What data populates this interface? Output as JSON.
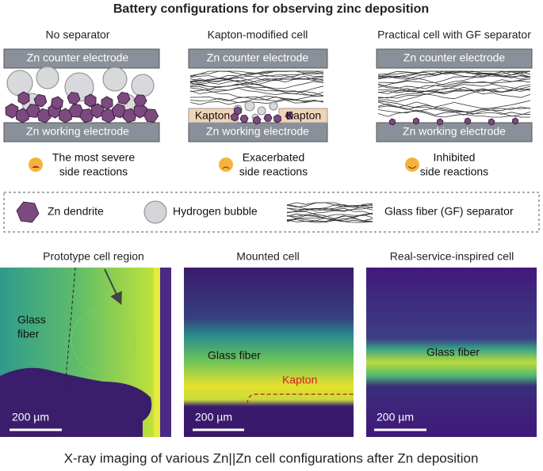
{
  "title": "Battery configurations for observing zinc deposition",
  "panels": [
    {
      "heading": "No separator",
      "top_electrode": "Zn counter electrode",
      "bottom_electrode": "Zn working electrode",
      "outcome": [
        "The most severe",
        "side reactions"
      ]
    },
    {
      "heading": "Kapton-modified cell",
      "top_electrode": "Zn counter electrode",
      "bottom_electrode": "Zn working electrode",
      "kapton_labels": [
        "Kapton",
        "Kapton"
      ],
      "outcome": [
        "Exacerbated",
        "side reactions"
      ]
    },
    {
      "heading": "Practical cell with GF separator",
      "top_electrode": "Zn counter electrode",
      "bottom_electrode": "Zn working electrode",
      "outcome": [
        "Inhibited",
        "side reactions"
      ]
    }
  ],
  "legend": [
    "Zn dendrite",
    "Hydrogen bubble",
    "Glass fiber (GF) separator"
  ],
  "images": [
    {
      "heading": "Prototype cell region",
      "labels": [
        "Glass",
        "fiber"
      ],
      "scale_bar": "200 µm"
    },
    {
      "heading": "Mounted cell",
      "labels": [
        "Glass fiber",
        "Kapton"
      ],
      "scale_bar": "200 µm"
    },
    {
      "heading": "Real-service-inspired cell",
      "labels": [
        "Glass fiber"
      ],
      "scale_bar": "200 µm"
    }
  ],
  "caption": "X-ray imaging of various Zn||Zn cell configurations after Zn deposition"
}
